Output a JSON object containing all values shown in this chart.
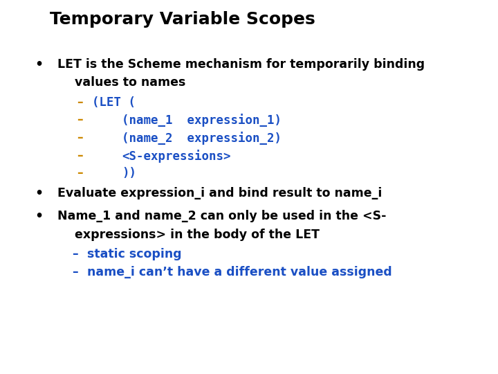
{
  "title": "Temporary Variable Scopes",
  "title_bg": "#ffff00",
  "title_color": "#000000",
  "title_fontsize": 18,
  "bg_color": "#ffffff",
  "bullet_color": "#000000",
  "bullet_fontsize": 12.5,
  "code_color": "#1a4fc4",
  "dash_color": "#cc8800",
  "sub_dash_color": "#1a4fc4",
  "sub_items": [
    {
      "text": "(LET (",
      "color": "#1a4fc4"
    },
    {
      "text": "        (name_1  expression_1)",
      "color": "#1a4fc4"
    },
    {
      "text": "        (name_2  expression_2)",
      "color": "#1a4fc4"
    },
    {
      "text": "        <S-expressions>",
      "color": "#1a4fc4"
    },
    {
      "text": "        ))",
      "color": "#1a4fc4"
    }
  ],
  "sub_items_display": [
    "(LET (",
    "(name_1  expression_1)",
    "(name_2  expression_2)",
    "<S-expressions>",
    "))"
  ],
  "bullet2": "Evaluate expression_i and bind result to name_i",
  "bullet3_line1": "Name_1 and name_2 can only be used in the <S-",
  "bullet3_line2": "expressions> in the body of the LET",
  "sub2_texts": [
    "static scoping",
    "name_i can’t have a different value assigned"
  ],
  "sub2_color": "#1a4fc4"
}
